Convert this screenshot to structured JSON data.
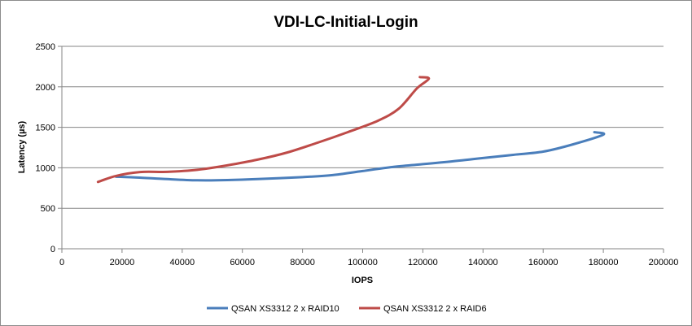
{
  "chart_data": {
    "type": "line",
    "title": "VDI-LC-Initial-Login",
    "xlabel": "IOPS",
    "ylabel": "Latency (µs)",
    "xlim": [
      0,
      200000
    ],
    "ylim": [
      0,
      2500
    ],
    "xticks": [
      0,
      20000,
      40000,
      60000,
      80000,
      100000,
      120000,
      140000,
      160000,
      180000,
      200000
    ],
    "yticks": [
      0,
      500,
      1000,
      1500,
      2000,
      2500
    ],
    "grid": "horizontal",
    "legend_position": "bottom",
    "series": [
      {
        "name": "QSAN XS3312 2 x RAID10",
        "color": "#4a7ebb",
        "x": [
          18000,
          25000,
          35000,
          45000,
          55000,
          65000,
          80000,
          90000,
          100000,
          110000,
          120000,
          130000,
          140000,
          150000,
          160000,
          170000,
          180000,
          177000
        ],
        "y": [
          890,
          880,
          860,
          845,
          848,
          860,
          885,
          910,
          960,
          1010,
          1045,
          1080,
          1120,
          1160,
          1200,
          1290,
          1410,
          1440
        ]
      },
      {
        "name": "QSAN XS3312 2 x RAID6",
        "color": "#be4b48",
        "x": [
          12000,
          18000,
          26000,
          35000,
          45000,
          55000,
          65000,
          75000,
          85000,
          95000,
          105000,
          112000,
          118000,
          122000,
          119000
        ],
        "y": [
          825,
          900,
          948,
          950,
          975,
          1030,
          1100,
          1190,
          1310,
          1440,
          1580,
          1730,
          1980,
          2100,
          2120
        ]
      }
    ]
  }
}
